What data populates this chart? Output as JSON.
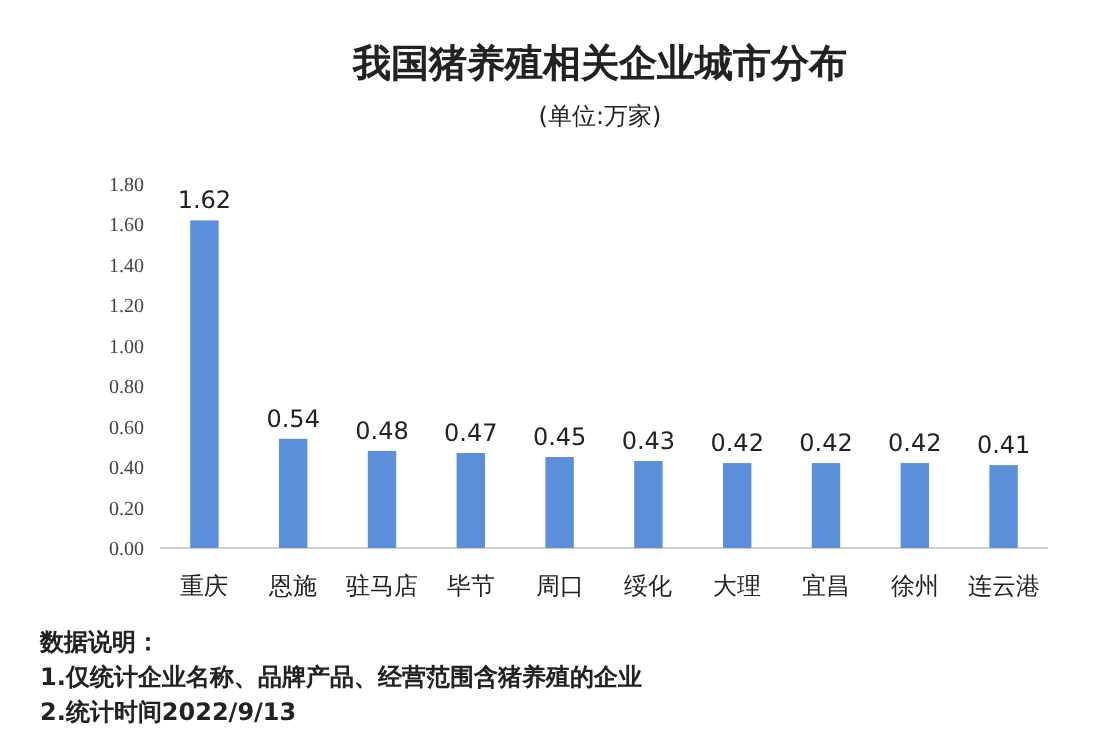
{
  "chart_data": {
    "type": "bar",
    "title": "我国猪养殖相关企业城市分布",
    "subtitle": "(单位:万家)",
    "categories": [
      "重庆",
      "恩施",
      "驻马店",
      "毕节",
      "周口",
      "绥化",
      "大理",
      "宜昌",
      "徐州",
      "连云港"
    ],
    "values": [
      1.62,
      0.54,
      0.48,
      0.47,
      0.45,
      0.43,
      0.42,
      0.42,
      0.42,
      0.41
    ],
    "color": "#5b8fd9",
    "data_labels": true,
    "ylim": [
      0,
      1.8
    ],
    "yticks": [
      {
        "value": 0,
        "label": "0.00"
      },
      {
        "value": 0.2,
        "label": "0.20"
      },
      {
        "value": 0.4,
        "label": "0.40"
      },
      {
        "value": 0.6,
        "label": "0.60"
      },
      {
        "value": 0.8,
        "label": "0.80"
      },
      {
        "value": 1,
        "label": "1.00"
      },
      {
        "value": 1.2,
        "label": "1.20"
      },
      {
        "value": 1.4,
        "label": "1.40"
      },
      {
        "value": 1.6,
        "label": "1.60"
      },
      {
        "value": 1.8,
        "label": "1.80"
      }
    ],
    "annotations": [
      "数据说明：",
      "1.仅统计企业名称、品牌产品、经营范围含猪养殖的企业",
      "2.统计时间2022/9/13"
    ]
  }
}
